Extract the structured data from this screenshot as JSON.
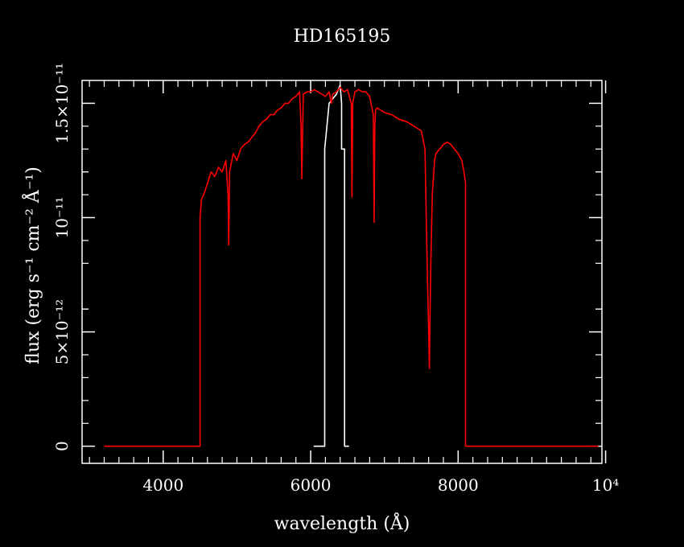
{
  "chart_data": {
    "type": "line",
    "title": "HD165195",
    "xlabel": "wavelength (Å)",
    "ylabel": "flux (erg s⁻¹ cm⁻² Å⁻¹)",
    "xlim": [
      2900,
      9950
    ],
    "ylim": [
      -7.5e-13,
      1.6e-11
    ],
    "x_ticks": [
      {
        "value": 4000,
        "label": "4000"
      },
      {
        "value": 6000,
        "label": "6000"
      },
      {
        "value": 8000,
        "label": "8000"
      },
      {
        "value": 10000,
        "label": "10⁴"
      }
    ],
    "y_ticks": [
      {
        "value": 0,
        "label": "0"
      },
      {
        "value": 5e-12,
        "label": "5×10⁻¹²"
      },
      {
        "value": 1e-11,
        "label": "10⁻¹¹"
      },
      {
        "value": 1.5e-11,
        "label": "1.5×10⁻¹¹"
      }
    ],
    "grid": false,
    "colors": {
      "background": "#000000",
      "axes": "#ffffff",
      "red_series": "#ff0000",
      "white_series": "#ffffff"
    },
    "series": [
      {
        "color": "#ffffff",
        "x": [
          6040,
          6190,
          6190,
          6250,
          6300,
          6350,
          6400,
          6420,
          6420,
          6460,
          6460,
          6520
        ],
        "y": [
          0,
          0,
          1.3e-11,
          1.5e-11,
          1.52e-11,
          1.54e-11,
          1.58e-11,
          1.5e-11,
          1.3e-11,
          1.3e-11,
          0,
          0
        ]
      },
      {
        "color": "#ff0000",
        "x": [
          3200,
          4500,
          4500,
          4520,
          4550,
          4600,
          4650,
          4700,
          4750,
          4800,
          4850,
          4880,
          4890,
          4900,
          4950,
          5000,
          5050,
          5100,
          5150,
          5200,
          5250,
          5300,
          5350,
          5400,
          5450,
          5500,
          5550,
          5600,
          5650,
          5700,
          5750,
          5800,
          5850,
          5870,
          5880,
          5900,
          5950,
          6000,
          6050,
          6100,
          6150,
          6200,
          6250,
          6280,
          6300,
          6350,
          6400,
          6450,
          6500,
          6550,
          6560,
          6570,
          6600,
          6650,
          6700,
          6750,
          6800,
          6850,
          6860,
          6870,
          6880,
          6900,
          6950,
          7000,
          7100,
          7200,
          7300,
          7400,
          7500,
          7550,
          7580,
          7600,
          7610,
          7620,
          7630,
          7650,
          7680,
          7700,
          7750,
          7800,
          7850,
          7900,
          7950,
          8000,
          8050,
          8080,
          8100,
          8100,
          9900
        ],
        "y": [
          0,
          0,
          1e-11,
          1.08e-11,
          1.1e-11,
          1.15e-11,
          1.2e-11,
          1.18e-11,
          1.22e-11,
          1.2e-11,
          1.25e-11,
          1.1e-11,
          8.8e-12,
          1.2e-11,
          1.28e-11,
          1.25e-11,
          1.3e-11,
          1.32e-11,
          1.33e-11,
          1.35e-11,
          1.37e-11,
          1.4e-11,
          1.42e-11,
          1.43e-11,
          1.45e-11,
          1.45e-11,
          1.47e-11,
          1.48e-11,
          1.5e-11,
          1.5e-11,
          1.52e-11,
          1.53e-11,
          1.55e-11,
          1.4e-11,
          1.17e-11,
          1.54e-11,
          1.55e-11,
          1.55e-11,
          1.56e-11,
          1.55e-11,
          1.54e-11,
          1.53e-11,
          1.55e-11,
          1.5e-11,
          1.54e-11,
          1.55e-11,
          1.57e-11,
          1.55e-11,
          1.56e-11,
          1.5e-11,
          1.09e-11,
          1.5e-11,
          1.55e-11,
          1.56e-11,
          1.55e-11,
          1.55e-11,
          1.53e-11,
          1.45e-11,
          9.8e-12,
          1.4e-11,
          1.47e-11,
          1.48e-11,
          1.47e-11,
          1.46e-11,
          1.45e-11,
          1.43e-11,
          1.42e-11,
          1.4e-11,
          1.38e-11,
          1.3e-11,
          8e-12,
          5e-12,
          3.4e-12,
          6e-12,
          8e-12,
          1.1e-11,
          1.25e-11,
          1.28e-11,
          1.3e-11,
          1.32e-11,
          1.33e-11,
          1.32e-11,
          1.3e-11,
          1.28e-11,
          1.25e-11,
          1.2e-11,
          1.15e-11,
          0,
          0
        ]
      }
    ]
  }
}
